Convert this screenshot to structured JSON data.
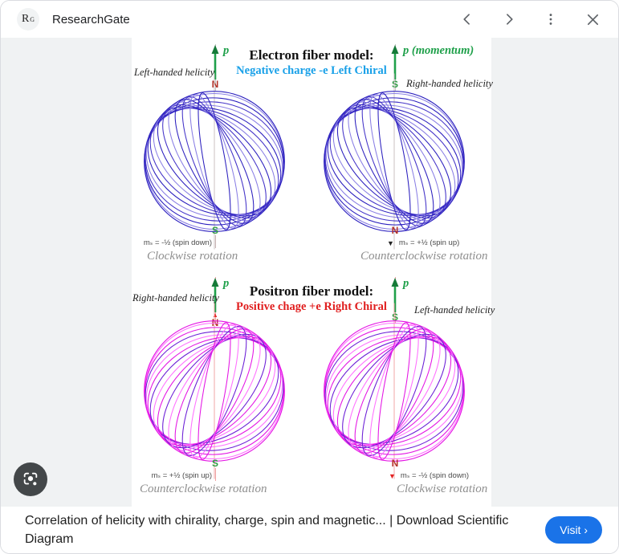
{
  "header": {
    "source_name": "ResearchGate",
    "logo_letter": "R",
    "logo_sup": "G"
  },
  "colors": {
    "accent_blue": "#1a73e8",
    "electron_subtitle_blue": "#18a0e8",
    "positron_subtitle_red": "#e01f1f",
    "momentum_green": "#1fa04a",
    "pole_red": "#b33228",
    "pole_green": "#2f9e44",
    "fiber_blue_dark": "#2b1fbe",
    "fiber_blue_light": "#8a7fe4",
    "fiber_blue_mid": "#4434c8",
    "fiber_magenta": "#e414e4",
    "fiber_pink": "#ff70ff",
    "fiber_purple": "#6b1ed6",
    "axis_gray": "#c4c4c4",
    "axis_pink": "#f0a4a4"
  },
  "figure": {
    "electron": {
      "title": "Electron fiber model:",
      "subtitle": "Negative charge -e Left Chiral"
    },
    "positron": {
      "title": "Positron fiber model:",
      "subtitle": "Positive chage +e Right Chiral"
    },
    "quadrants": [
      {
        "helicity": "Left-handed helicity",
        "p_label": "p",
        "pole_top": "N",
        "pole_top_marker": "",
        "pole_bottom": "S",
        "spin_marker": "",
        "spin": "mₛ = -½  (spin down)",
        "rotation": "Clockwise rotation"
      },
      {
        "helicity": "Right-handed helicity",
        "p_label": "p  (momentum)",
        "pole_top": "S",
        "pole_top_marker": "",
        "pole_bottom": "N",
        "spin_marker": "▼",
        "spin": "mₛ = +½  (spin up)",
        "rotation": "Counterclockwise rotation"
      },
      {
        "helicity": "Right-handed helicity",
        "p_label": "p",
        "pole_top": "N",
        "pole_top_marker": "▲",
        "pole_bottom": "S",
        "spin_marker": "",
        "spin": "mₛ = +½  (spin up)",
        "rotation": "Counterclockwise rotation"
      },
      {
        "helicity": "Left-handed helicity",
        "p_label": "p",
        "pole_top": "S",
        "pole_top_marker": "",
        "pole_bottom": "N",
        "spin_marker": "▼",
        "spin": "mₛ = -½  (spin down)",
        "rotation": "Clockwise rotation"
      }
    ]
  },
  "footer": {
    "caption": "Correlation of helicity with chirality, charge, spin and magnetic... | Download Scientific Diagram",
    "visit_label": "Visit ›"
  }
}
